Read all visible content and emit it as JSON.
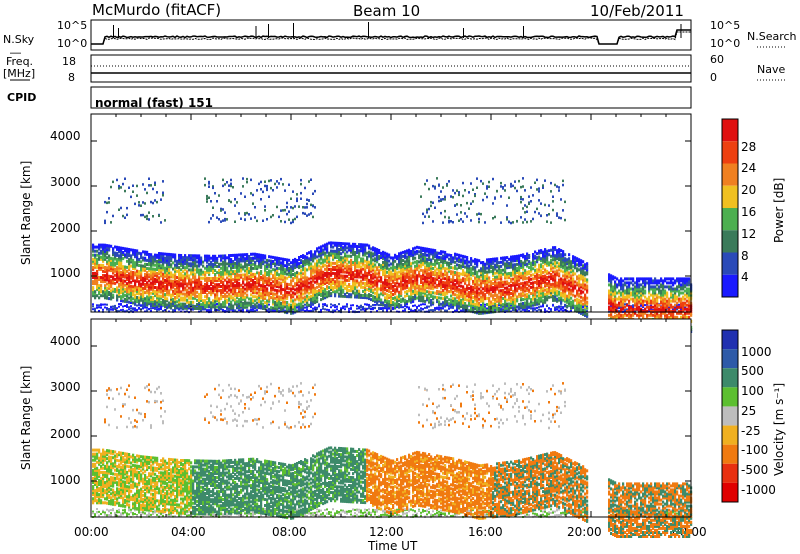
{
  "header": {
    "station": "McMurdo (fitACF)",
    "beam": "Beam 10",
    "date": "10/Feb/2011"
  },
  "top_panel": {
    "left_label": "N.Sky",
    "right_label": "N.Search",
    "left_ticks": [
      "10^5",
      "10^0"
    ],
    "right_ticks": [
      "10^5",
      "10^0"
    ]
  },
  "freq_panel": {
    "left_label_line1": "Freq.",
    "left_label_line2": "[MHz]",
    "right_label": "Nave",
    "left_ticks": [
      "18",
      "8"
    ],
    "right_ticks": [
      "60",
      "0"
    ]
  },
  "cpid": {
    "label": "CPID",
    "value": "normal (fast) 151"
  },
  "colors": {
    "power_scale": [
      "#1a1aff",
      "#2a4ab8",
      "#3a7a5a",
      "#4caf50",
      "#f0c020",
      "#f08020",
      "#ee4010",
      "#e01010"
    ],
    "velocity_scale": [
      "#2030b0",
      "#2e5aa8",
      "#3d8a6a",
      "#5cbf30",
      "#bdbdbd",
      "#f0b020",
      "#f07a10",
      "#e83010",
      "#e00000"
    ]
  },
  "chart_data": [
    {
      "type": "heatmap",
      "title": "",
      "xlabel": "Time UT",
      "ylabel": "Slant Range [km]",
      "xlim": [
        0,
        24
      ],
      "ylim": [
        200,
        4600
      ],
      "x_ticks": [
        "00:00",
        "04:00",
        "08:00",
        "12:00",
        "16:00",
        "20:00",
        "00:00"
      ],
      "y_ticks": [
        "1000",
        "2000",
        "3000",
        "4000"
      ],
      "colorbar": {
        "label": "Power [dB]",
        "ticks": [
          "4",
          "8",
          "12",
          "16",
          "20",
          "24",
          "28"
        ],
        "range": [
          0,
          30
        ]
      },
      "strong_echo_band_km": [
        {
          "t": 0.5,
          "r": 1050
        },
        {
          "t": 2.0,
          "r": 900
        },
        {
          "t": 3.5,
          "r": 820
        },
        {
          "t": 5.0,
          "r": 800
        },
        {
          "t": 6.5,
          "r": 850
        },
        {
          "t": 8.0,
          "r": 700
        },
        {
          "t": 9.5,
          "r": 1100
        },
        {
          "t": 11.0,
          "r": 1050
        },
        {
          "t": 12.0,
          "r": 800
        },
        {
          "t": 13.0,
          "r": 1000
        },
        {
          "t": 14.5,
          "r": 850
        },
        {
          "t": 15.5,
          "r": 700
        },
        {
          "t": 17.0,
          "r": 800
        },
        {
          "t": 18.5,
          "r": 1000
        },
        {
          "t": 21.0,
          "r": 300
        }
      ]
    },
    {
      "type": "heatmap",
      "title": "",
      "xlabel": "Time UT",
      "ylabel": "Slant Range [km]",
      "xlim": [
        0,
        24
      ],
      "ylim": [
        200,
        4600
      ],
      "x_ticks": [
        "00:00",
        "04:00",
        "08:00",
        "12:00",
        "16:00",
        "20:00",
        "00:00"
      ],
      "y_ticks": [
        "1000",
        "2000",
        "3000",
        "4000"
      ],
      "colorbar": {
        "label": "Velocity [m s⁻¹]",
        "ticks": [
          "1000",
          "500",
          "100",
          "25",
          "-25",
          "-100",
          "-500",
          "-1000"
        ],
        "range": [
          -1000,
          1000
        ]
      }
    }
  ]
}
